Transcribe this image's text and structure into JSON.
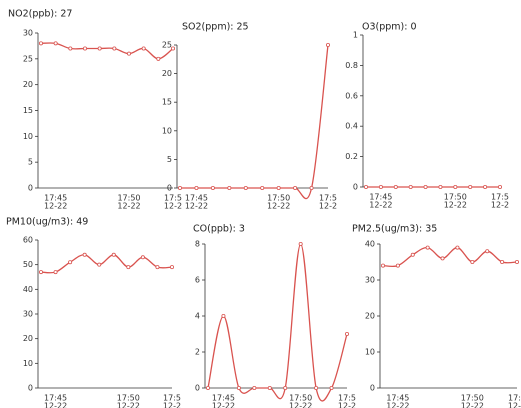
{
  "chart_data": [
    {
      "type": "line",
      "title": "NO2(ppb):  27",
      "categories": [
        null,
        "17:45",
        null,
        null,
        null,
        null,
        "17:50",
        null,
        null,
        "17:5"
      ],
      "dates": [
        null,
        "12-22",
        null,
        null,
        null,
        null,
        "12-22",
        null,
        null,
        "12-2"
      ],
      "values": [
        28,
        28,
        27,
        27,
        27,
        27,
        26,
        27,
        25,
        27
      ],
      "color": "#d9534f",
      "ylim": [
        0,
        30
      ],
      "yticks": [
        0,
        5,
        10,
        15,
        20,
        25,
        30
      ]
    },
    {
      "type": "line",
      "title": "SO2(ppm):  25",
      "categories": [
        null,
        "17:45",
        null,
        null,
        null,
        null,
        "17:50",
        null,
        null,
        "17:5"
      ],
      "dates": [
        null,
        "12-22",
        null,
        null,
        null,
        null,
        "12-22",
        null,
        null,
        "12-2"
      ],
      "values": [
        0,
        0,
        0,
        0,
        0,
        0,
        0,
        0,
        0,
        25
      ],
      "color": "#d9534f",
      "ylim": [
        0,
        25
      ],
      "yticks": [
        0,
        5,
        10,
        15,
        20,
        25
      ]
    },
    {
      "type": "line",
      "title": "O3(ppm):  0",
      "categories": [
        null,
        "17:45",
        null,
        null,
        null,
        null,
        "17:50",
        null,
        null,
        "17:5"
      ],
      "dates": [
        null,
        "12-22",
        null,
        null,
        null,
        null,
        "12-22",
        null,
        null,
        "12-2"
      ],
      "values": [
        0,
        0,
        0,
        0,
        0,
        0,
        0,
        0,
        0,
        0
      ],
      "color": "#d9534f",
      "ylim": [
        0,
        1
      ],
      "yticks": [
        0,
        0.2,
        0.4,
        0.6,
        0.8,
        1
      ]
    },
    {
      "type": "line",
      "title": "PM10(ug/m3):  49",
      "categories": [
        null,
        "17:45",
        null,
        null,
        null,
        null,
        "17:50",
        null,
        null,
        "17:5"
      ],
      "dates": [
        null,
        "12-22",
        null,
        null,
        null,
        null,
        "12-22",
        null,
        null,
        "12-2"
      ],
      "values": [
        47,
        47,
        51,
        54,
        50,
        54,
        49,
        53,
        49,
        49
      ],
      "color": "#d9534f",
      "ylim": [
        0,
        60
      ],
      "yticks": [
        0,
        10,
        20,
        30,
        40,
        50,
        60
      ]
    },
    {
      "type": "line",
      "title": "CO(ppb):  3",
      "categories": [
        null,
        "17:45",
        null,
        null,
        null,
        null,
        "17:50",
        null,
        null,
        "17:5"
      ],
      "dates": [
        null,
        "12-22",
        null,
        null,
        null,
        null,
        "12-22",
        null,
        null,
        "12-2"
      ],
      "values": [
        0,
        4,
        0,
        0,
        0,
        0,
        8,
        0,
        0,
        3
      ],
      "color": "#d9534f",
      "ylim": [
        0,
        8
      ],
      "yticks": [
        0,
        2,
        4,
        6,
        8
      ]
    },
    {
      "type": "line",
      "title": "PM2.5(ug/m3):  35",
      "categories": [
        null,
        "17:45",
        null,
        null,
        null,
        null,
        "17:50",
        null,
        null,
        "17:5"
      ],
      "dates": [
        null,
        "12-22",
        null,
        null,
        null,
        null,
        "12-22",
        null,
        null,
        "12-2"
      ],
      "values": [
        34,
        34,
        37,
        39,
        36,
        39,
        35,
        38,
        35,
        35
      ],
      "color": "#d9534f",
      "ylim": [
        0,
        40
      ],
      "yticks": [
        0,
        10,
        20,
        30,
        40
      ]
    }
  ]
}
